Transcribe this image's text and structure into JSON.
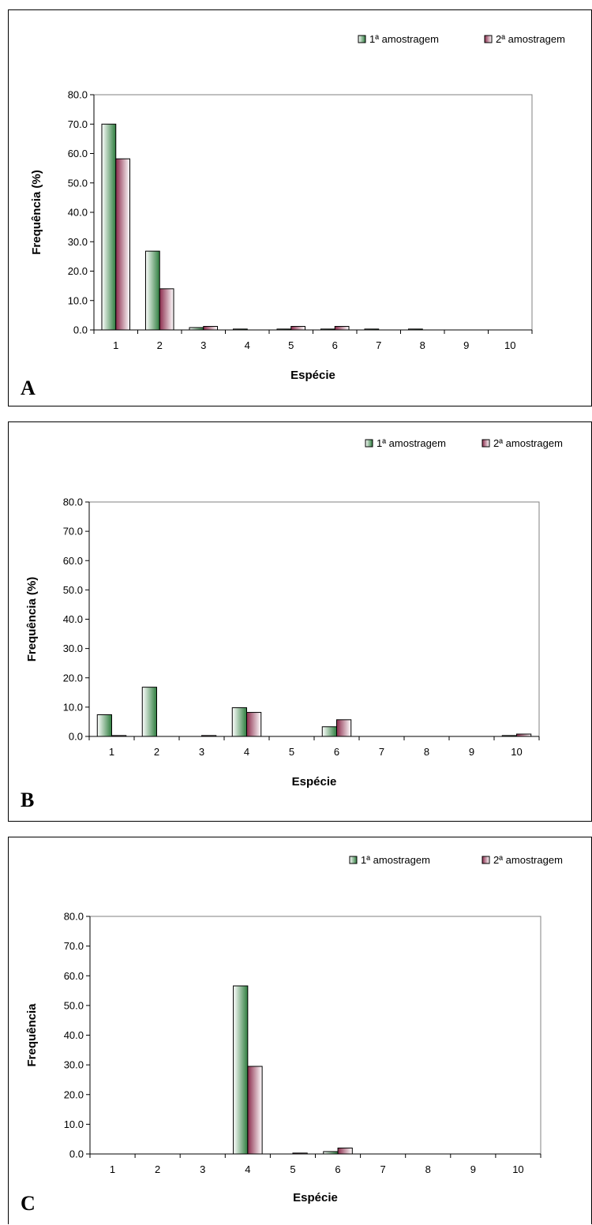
{
  "colors": {
    "series1_dark": "#2e7d3e",
    "series1_light": "#ffffff",
    "series2_dark": "#8b2c4c",
    "series2_light": "#ffffff",
    "axis": "#808080",
    "border": "#000000"
  },
  "chart_data": [
    {
      "type": "bar",
      "panel_label": "A",
      "categories": [
        "1",
        "2",
        "3",
        "4",
        "5",
        "6",
        "7",
        "8",
        "9",
        "10"
      ],
      "series": [
        {
          "name": "1ª amostragem",
          "values": [
            70.0,
            26.8,
            0.8,
            0.3,
            0.3,
            0.3,
            0.3,
            0.3,
            0.0,
            0.0
          ]
        },
        {
          "name": "2ª amostragem",
          "values": [
            58.2,
            14.0,
            1.2,
            0.0,
            1.2,
            1.2,
            0.0,
            0.0,
            0.0,
            0.0
          ]
        }
      ],
      "xlabel": "Espécie",
      "ylabel": "Frequência (%)",
      "ylim": [
        0,
        80
      ],
      "yticks": [
        "0.0",
        "10.0",
        "20.0",
        "30.0",
        "40.0",
        "50.0",
        "60.0",
        "70.0",
        "80.0"
      ],
      "legend": "top-right",
      "grid": false
    },
    {
      "type": "bar",
      "panel_label": "B",
      "categories": [
        "1",
        "2",
        "3",
        "4",
        "5",
        "6",
        "7",
        "8",
        "9",
        "10"
      ],
      "series": [
        {
          "name": "1ª amostragem",
          "values": [
            7.4,
            16.8,
            0.0,
            9.8,
            0.0,
            3.3,
            0.0,
            0.0,
            0.0,
            0.3
          ]
        },
        {
          "name": "2ª amostragem",
          "values": [
            0.3,
            0.0,
            0.3,
            8.2,
            0.0,
            5.7,
            0.0,
            0.0,
            0.0,
            0.8
          ]
        }
      ],
      "xlabel": "Espécie",
      "ylabel": "Frequência (%)",
      "ylim": [
        0,
        80
      ],
      "yticks": [
        "0.0",
        "10.0",
        "20.0",
        "30.0",
        "40.0",
        "50.0",
        "60.0",
        "70.0",
        "80.0"
      ],
      "legend": "top-right",
      "grid": false
    },
    {
      "type": "bar",
      "panel_label": "C",
      "categories": [
        "1",
        "2",
        "3",
        "4",
        "5",
        "6",
        "7",
        "8",
        "9",
        "10"
      ],
      "series": [
        {
          "name": "1ª amostragem",
          "values": [
            0.0,
            0.0,
            0.0,
            56.6,
            0.0,
            0.8,
            0.0,
            0.0,
            0.0,
            0.0
          ]
        },
        {
          "name": "2ª amostragem",
          "values": [
            0.0,
            0.0,
            0.0,
            29.5,
            0.3,
            2.0,
            0.0,
            0.0,
            0.0,
            0.0
          ]
        }
      ],
      "xlabel": "Espécie",
      "ylabel": "Frequência",
      "ylim": [
        0,
        80
      ],
      "yticks": [
        "0.0",
        "10.0",
        "20.0",
        "30.0",
        "40.0",
        "50.0",
        "60.0",
        "70.0",
        "80.0"
      ],
      "legend": "top-right",
      "grid": false
    }
  ]
}
